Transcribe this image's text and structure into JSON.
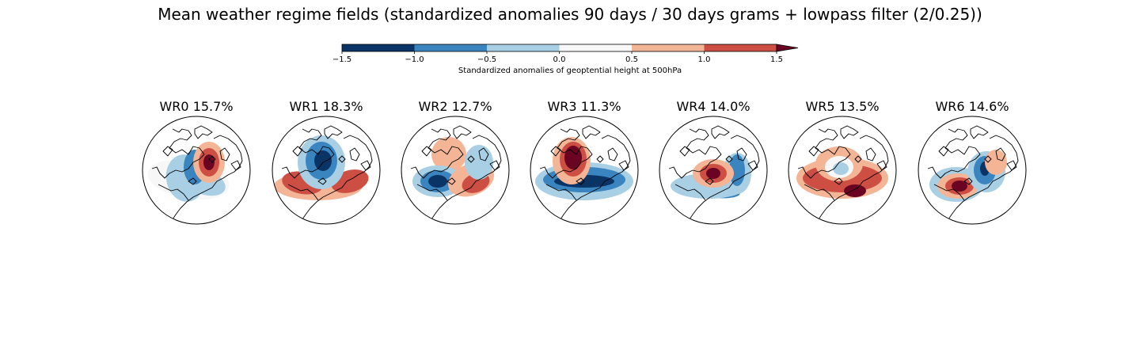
{
  "title": "Mean weather regime fields (standardized anomalies 90 days / 30 days grams + lowpass filter (2/0.25))",
  "colorbar": {
    "label": "Standardized anomalies of geoptential height at 500hPa",
    "ticks": [
      "−1.5",
      "−1.0",
      "−0.5",
      "0.0",
      "0.5",
      "1.0",
      "1.5"
    ],
    "bins": [
      {
        "from": -1.5,
        "to": -1.0,
        "color": "#0b3466"
      },
      {
        "from": -1.0,
        "to": -0.5,
        "color": "#3a84bf"
      },
      {
        "from": -0.5,
        "to": 0.0,
        "color": "#a8cfe3"
      },
      {
        "from": 0.0,
        "to": 0.5,
        "color": "#f7f7f7"
      },
      {
        "from": 0.5,
        "to": 1.0,
        "color": "#f4b596"
      },
      {
        "from": 1.0,
        "to": 1.5,
        "color": "#cd4f44"
      }
    ],
    "extend_color": "#6b0422"
  },
  "panels": [
    {
      "title": "WR0 15.7%"
    },
    {
      "title": "WR1 18.3%"
    },
    {
      "title": "WR2 12.7%"
    },
    {
      "title": "WR3 11.3%"
    },
    {
      "title": "WR4 14.0%"
    },
    {
      "title": "WR5 13.5%"
    },
    {
      "title": "WR6 14.6%"
    }
  ]
}
